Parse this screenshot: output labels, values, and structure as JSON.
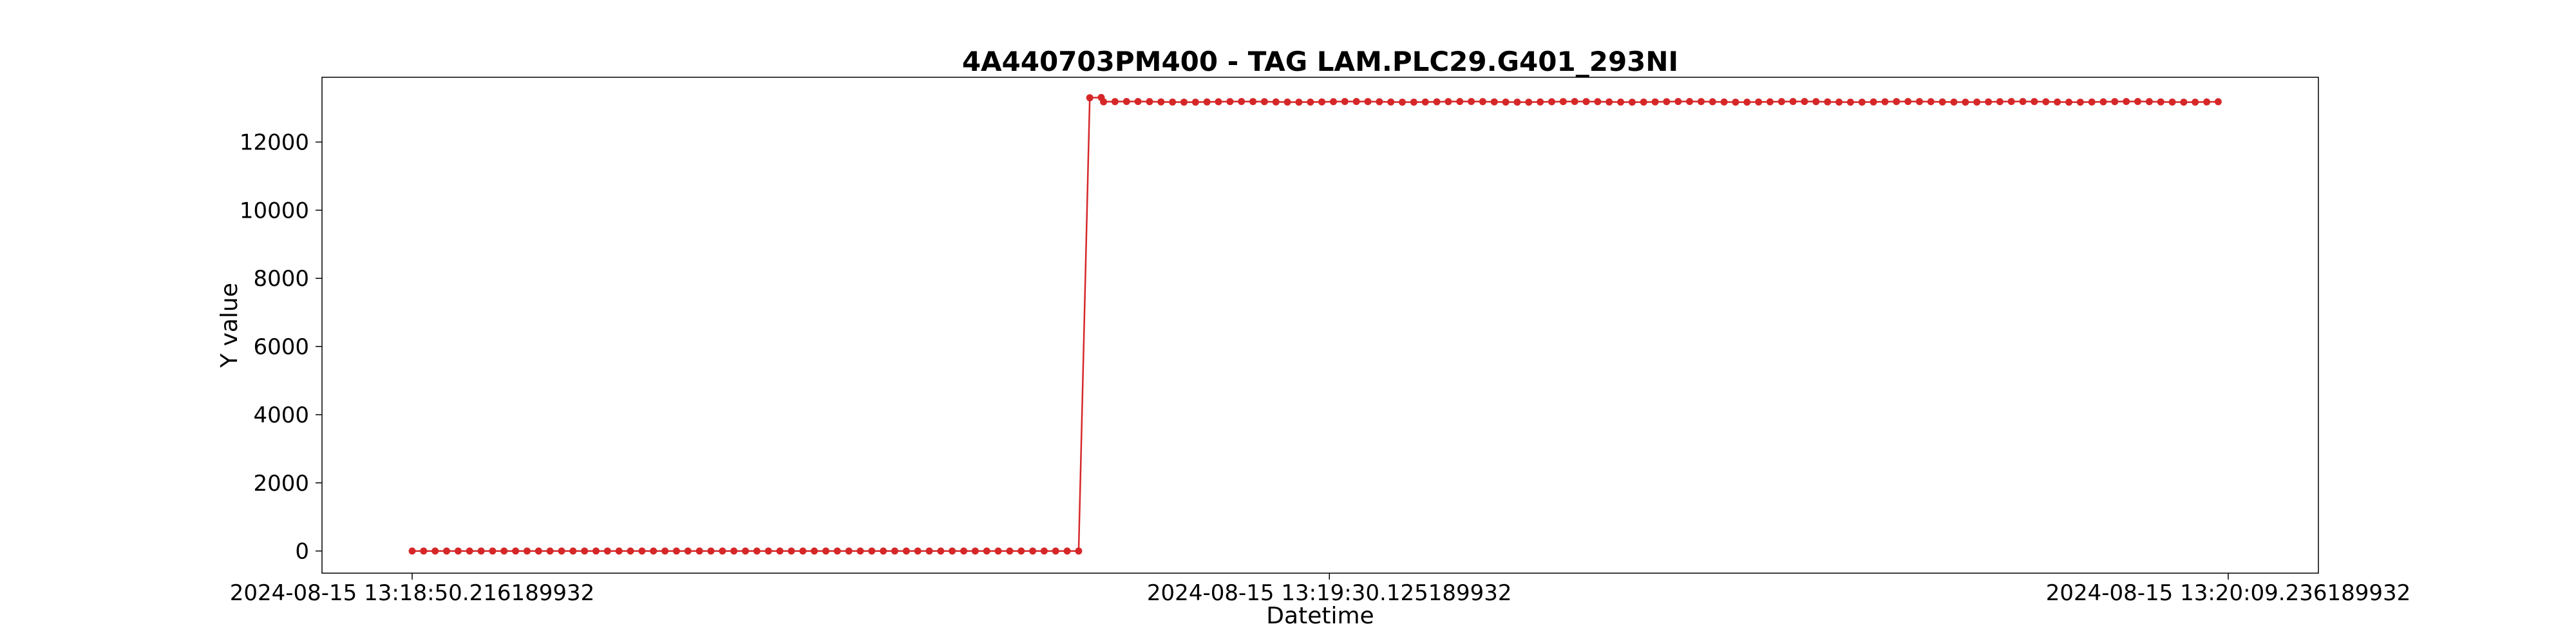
{
  "chart_data": {
    "type": "line",
    "title": "4A440703PM400 - TAG LAM.PLC29.G401_293NI",
    "xlabel": "Datetime",
    "ylabel": "Y value",
    "x_tick_labels": [
      "2024-08-15 13:18:50.216189932",
      "2024-08-15 13:19:30.125189932",
      "2024-08-15 13:20:09.236189932"
    ],
    "x_range": [
      "2024-08-15 13:18:50.216189932",
      "2024-08-15 13:20:09.236189932"
    ],
    "y_ticks": [
      0,
      2000,
      4000,
      6000,
      8000,
      10000,
      12000
    ],
    "ylim": [
      -650,
      13900
    ],
    "grid": false,
    "legend": "none",
    "series": [
      {
        "color": "#d62728",
        "marker": "circle",
        "sampling": "roughly every 0.5 seconds",
        "segments": [
          {
            "from": "2024-08-15 13:18:50.216189932",
            "to": "2024-08-15 13:19:19.3",
            "value": 0
          },
          {
            "from": "2024-08-15 13:19:19.7",
            "to": "2024-08-15 13:19:20.3",
            "value": 13300
          },
          {
            "from": "2024-08-15 13:19:20.3",
            "to": "2024-08-15 13:20:09.236189932",
            "value": 13180
          }
        ]
      }
    ]
  }
}
